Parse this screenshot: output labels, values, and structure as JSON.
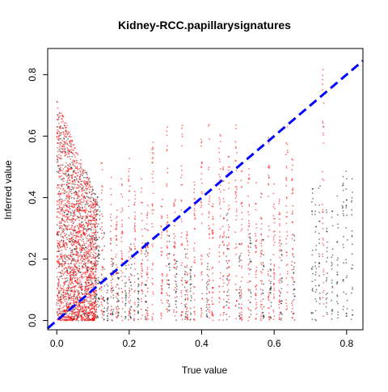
{
  "chart_data": {
    "type": "scatter",
    "title": "Kidney-RCC.papillarysignatures",
    "xlabel": "True value",
    "ylabel": "Inferred value",
    "xlim": [
      -0.025,
      0.845
    ],
    "ylim": [
      -0.03,
      0.885
    ],
    "x_ticks": [
      0.0,
      0.2,
      0.4,
      0.6,
      0.8
    ],
    "x_tick_labels": [
      "0.0",
      "0.2",
      "0.4",
      "0.6",
      "0.8"
    ],
    "y_ticks": [
      0.0,
      0.2,
      0.4,
      0.6,
      0.8
    ],
    "y_tick_labels": [
      "0.0",
      "0.2",
      "0.4",
      "0.6",
      "0.8"
    ],
    "grid": false,
    "legend": "none",
    "reference_line": {
      "type": "identity",
      "slope": 1,
      "intercept": 0,
      "color": "#0000ff",
      "style": "dashed"
    },
    "series": [
      {
        "color": "#ff0000",
        "dense_region": {
          "x": [
            0.0,
            0.11
          ],
          "y": [
            0.0,
            0.72
          ]
        },
        "columns": [
          {
            "x": 0.125,
            "ymax": 0.52
          },
          {
            "x": 0.15,
            "ymax": 0.48
          },
          {
            "x": 0.165,
            "ymax": 0.36
          },
          {
            "x": 0.18,
            "ymax": 0.5
          },
          {
            "x": 0.2,
            "ymax": 0.55
          },
          {
            "x": 0.215,
            "ymax": 0.42
          },
          {
            "x": 0.235,
            "ymax": 0.47
          },
          {
            "x": 0.25,
            "ymax": 0.38
          },
          {
            "x": 0.265,
            "ymax": 0.58
          },
          {
            "x": 0.29,
            "ymax": 0.44
          },
          {
            "x": 0.305,
            "ymax": 0.63
          },
          {
            "x": 0.325,
            "ymax": 0.4
          },
          {
            "x": 0.345,
            "ymax": 0.66
          },
          {
            "x": 0.36,
            "ymax": 0.3
          },
          {
            "x": 0.38,
            "ymax": 0.46
          },
          {
            "x": 0.4,
            "ymax": 0.6
          },
          {
            "x": 0.42,
            "ymax": 0.72
          },
          {
            "x": 0.43,
            "ymax": 0.38
          },
          {
            "x": 0.45,
            "ymax": 0.61
          },
          {
            "x": 0.46,
            "ymax": 0.5
          },
          {
            "x": 0.475,
            "ymax": 0.55
          },
          {
            "x": 0.495,
            "ymax": 0.65
          },
          {
            "x": 0.51,
            "ymax": 0.52
          },
          {
            "x": 0.53,
            "ymax": 0.5
          },
          {
            "x": 0.55,
            "ymax": 0.45
          },
          {
            "x": 0.565,
            "ymax": 0.42
          },
          {
            "x": 0.585,
            "ymax": 0.62
          },
          {
            "x": 0.6,
            "ymax": 0.5
          },
          {
            "x": 0.615,
            "ymax": 0.4
          },
          {
            "x": 0.635,
            "ymax": 0.64
          },
          {
            "x": 0.65,
            "ymax": 0.55
          },
          {
            "x": 0.735,
            "ymax": 0.85
          }
        ]
      },
      {
        "color": "#000000",
        "dense_region": {
          "x": [
            0.0,
            0.12
          ],
          "y": [
            0.0,
            0.7
          ]
        },
        "columns": [
          {
            "x": 0.13,
            "ymax": 0.3
          },
          {
            "x": 0.14,
            "ymax": 0.12
          },
          {
            "x": 0.155,
            "ymax": 0.2
          },
          {
            "x": 0.17,
            "ymax": 0.16
          },
          {
            "x": 0.19,
            "ymax": 0.22
          },
          {
            "x": 0.205,
            "ymax": 0.25
          },
          {
            "x": 0.225,
            "ymax": 0.18
          },
          {
            "x": 0.245,
            "ymax": 0.3
          },
          {
            "x": 0.31,
            "ymax": 0.28
          },
          {
            "x": 0.33,
            "ymax": 0.2
          },
          {
            "x": 0.355,
            "ymax": 0.24
          },
          {
            "x": 0.37,
            "ymax": 0.18
          },
          {
            "x": 0.415,
            "ymax": 0.22
          },
          {
            "x": 0.47,
            "ymax": 0.35
          },
          {
            "x": 0.505,
            "ymax": 0.25
          },
          {
            "x": 0.535,
            "ymax": 0.3
          },
          {
            "x": 0.57,
            "ymax": 0.28
          },
          {
            "x": 0.59,
            "ymax": 0.2
          },
          {
            "x": 0.62,
            "ymax": 0.26
          },
          {
            "x": 0.655,
            "ymax": 0.3
          },
          {
            "x": 0.705,
            "ymax": 0.46
          },
          {
            "x": 0.715,
            "ymax": 0.4
          },
          {
            "x": 0.725,
            "ymax": 0.44
          },
          {
            "x": 0.745,
            "ymax": 0.38
          },
          {
            "x": 0.76,
            "ymax": 0.36
          },
          {
            "x": 0.775,
            "ymax": 0.42
          },
          {
            "x": 0.79,
            "ymax": 0.55
          },
          {
            "x": 0.8,
            "ymax": 0.5
          },
          {
            "x": 0.815,
            "ymax": 0.48
          }
        ]
      }
    ]
  }
}
